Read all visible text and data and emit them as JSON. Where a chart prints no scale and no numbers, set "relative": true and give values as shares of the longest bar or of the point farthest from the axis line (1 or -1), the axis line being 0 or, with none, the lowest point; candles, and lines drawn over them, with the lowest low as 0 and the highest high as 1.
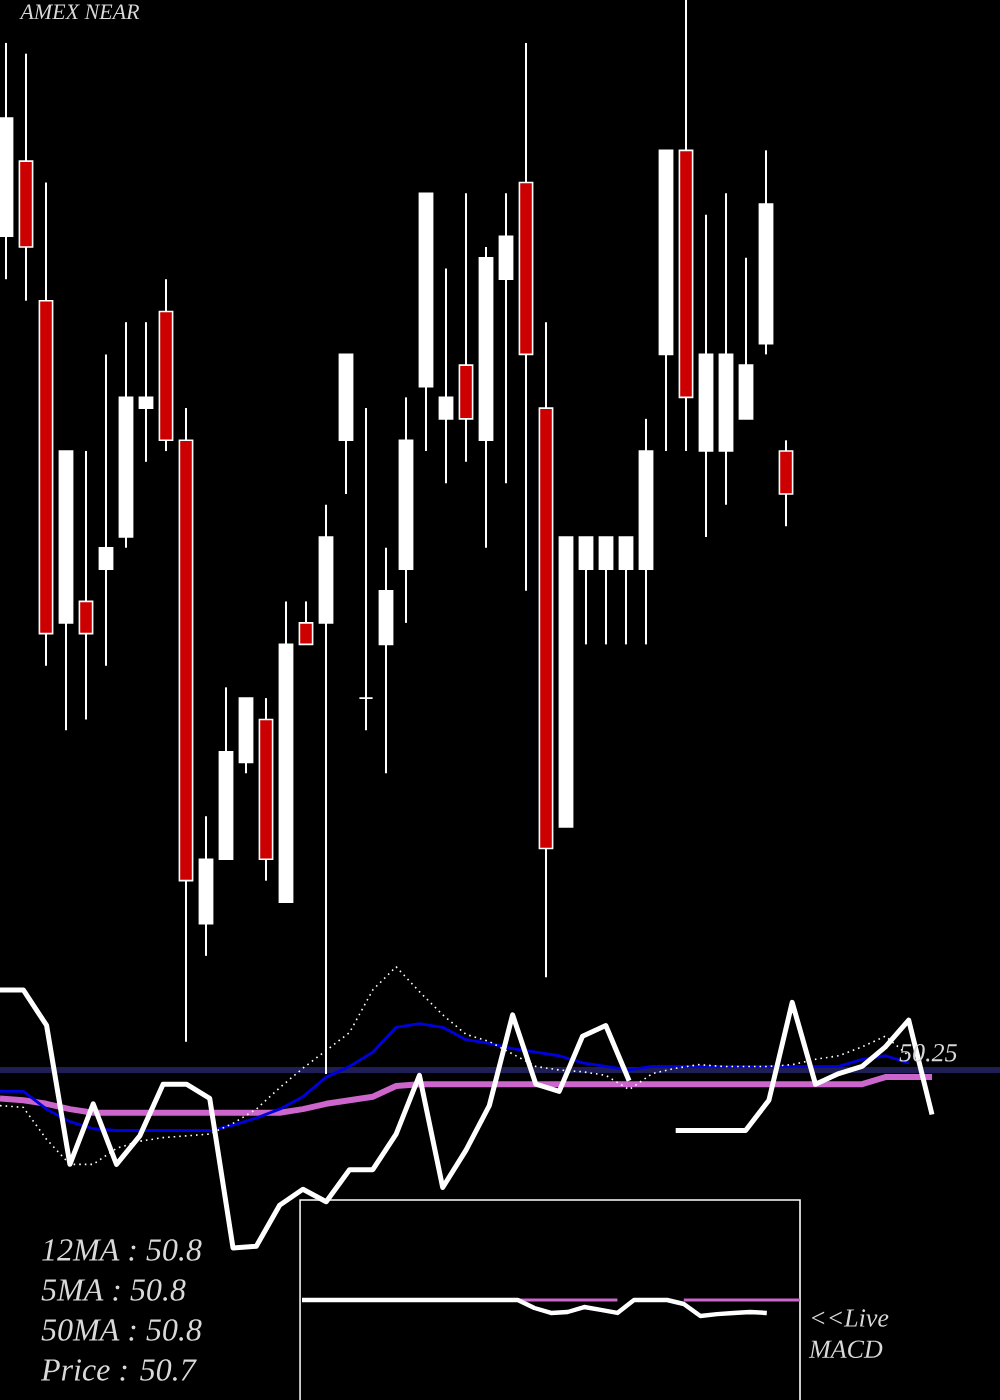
{
  "chart_data": [
    {
      "type": "candlestick",
      "title": "AMEX NEAR",
      "relative": true,
      "categories": [
        null,
        null,
        null,
        null,
        null,
        null,
        null,
        null,
        null,
        null,
        null,
        null,
        null,
        null,
        null,
        null,
        null,
        null,
        null,
        null,
        null,
        null,
        null,
        null,
        null,
        null,
        null,
        null,
        null,
        null,
        null,
        null,
        null,
        null,
        null,
        null,
        null,
        null,
        null,
        null
      ],
      "ohlc": [
        [
          0.78,
          0.96,
          0.74,
          0.89
        ],
        [
          0.85,
          0.95,
          0.72,
          0.77
        ],
        [
          0.72,
          0.83,
          0.38,
          0.41
        ],
        [
          0.42,
          0.58,
          0.32,
          0.58
        ],
        [
          0.44,
          0.58,
          0.33,
          0.41
        ],
        [
          0.47,
          0.67,
          0.38,
          0.49
        ],
        [
          0.5,
          0.7,
          0.49,
          0.63
        ],
        [
          0.62,
          0.7,
          0.57,
          0.63
        ],
        [
          0.71,
          0.74,
          0.58,
          0.59
        ],
        [
          0.59,
          0.62,
          0.03,
          0.18
        ],
        [
          0.14,
          0.24,
          0.11,
          0.2
        ],
        [
          0.2,
          0.36,
          0.2,
          0.3
        ],
        [
          0.29,
          0.35,
          0.28,
          0.35
        ],
        [
          0.33,
          0.35,
          0.18,
          0.2
        ],
        [
          0.16,
          0.44,
          0.16,
          0.4
        ],
        [
          0.42,
          0.44,
          0.4,
          0.4
        ],
        [
          0.42,
          0.53,
          0,
          0.5
        ],
        [
          0.59,
          0.67,
          0.54,
          0.67
        ],
        [
          0.35,
          0.62,
          0.32,
          0.35
        ],
        [
          0.4,
          0.49,
          0.28,
          0.45
        ],
        [
          0.47,
          0.63,
          0.42,
          0.59
        ],
        [
          0.64,
          0.82,
          0.58,
          0.82
        ],
        [
          0.61,
          0.75,
          0.55,
          0.63
        ],
        [
          0.66,
          0.82,
          0.57,
          0.61
        ],
        [
          0.59,
          0.77,
          0.49,
          0.76
        ],
        [
          0.74,
          0.82,
          0.55,
          0.78
        ],
        [
          0.83,
          0.96,
          0.45,
          0.67
        ],
        [
          0.62,
          0.7,
          0.09,
          0.21
        ],
        [
          0.23,
          0.5,
          0.23,
          0.5
        ],
        [
          0.47,
          0.5,
          0.4,
          0.5
        ],
        [
          0.47,
          0.5,
          0.4,
          0.5
        ],
        [
          0.47,
          0.5,
          0.4,
          0.5
        ],
        [
          0.47,
          0.61,
          0.4,
          0.58
        ],
        [
          0.67,
          0.86,
          0.58,
          0.86
        ],
        [
          0.86,
          1,
          0.58,
          0.63
        ],
        [
          0.58,
          0.8,
          0.5,
          0.67
        ],
        [
          0.58,
          0.82,
          0.53,
          0.67
        ],
        [
          0.61,
          0.76,
          0.61,
          0.66
        ],
        [
          0.68,
          0.86,
          0.67,
          0.81
        ],
        [
          0.58,
          0.59,
          0.51,
          0.54
        ]
      ],
      "colors": [
        "#ffffff",
        "#cc0000",
        "#cc0000",
        "#ffffff",
        "#cc0000",
        "#ffffff",
        "#ffffff",
        "#ffffff",
        "#cc0000",
        "#cc0000",
        "#ffffff",
        "#ffffff",
        "#ffffff",
        "#cc0000",
        "#ffffff",
        "#cc0000",
        "#ffffff",
        "#ffffff",
        "#ffffff",
        "#ffffff",
        "#ffffff",
        "#ffffff",
        "#ffffff",
        "#cc0000",
        "#ffffff",
        "#ffffff",
        "#cc0000",
        "#cc0000",
        "#ffffff",
        "#ffffff",
        "#ffffff",
        "#ffffff",
        "#ffffff",
        "#ffffff",
        "#cc0000",
        "#ffffff",
        "#ffffff",
        "#ffffff",
        "#ffffff",
        "#cc0000"
      ]
    },
    {
      "type": "line",
      "relative": true,
      "categories": [
        null,
        null,
        null,
        null,
        null,
        null,
        null,
        null,
        null,
        null,
        null,
        null,
        null,
        null,
        null,
        null,
        null,
        null,
        null,
        null,
        null,
        null,
        null,
        null,
        null,
        null,
        null,
        null,
        null,
        null,
        null,
        null,
        null,
        null,
        null,
        null,
        null,
        null,
        null,
        null,
        null
      ],
      "series": [
        {
          "color": "#cc66cc",
          "values": [
            -0.16,
            -0.17,
            -0.19,
            -0.22,
            -0.24,
            -0.24,
            -0.24,
            -0.24,
            -0.24,
            -0.24,
            -0.24,
            -0.24,
            -0.24,
            -0.22,
            -0.19,
            -0.17,
            -0.15,
            -0.09,
            -0.08,
            -0.08,
            -0.08,
            -0.08,
            -0.08,
            -0.08,
            -0.08,
            -0.08,
            -0.08,
            -0.08,
            -0.08,
            -0.08,
            -0.08,
            -0.08,
            -0.08,
            -0.08,
            -0.08,
            -0.08,
            -0.08,
            -0.08,
            -0.04,
            -0.04,
            -0.04
          ]
        },
        {
          "color": "#0000dd",
          "values": [
            -0.12,
            -0.12,
            -0.22,
            -0.29,
            -0.33,
            -0.34,
            -0.34,
            -0.34,
            -0.34,
            -0.34,
            -0.31,
            -0.27,
            -0.22,
            -0.15,
            -0.04,
            0.02,
            0.1,
            0.24,
            0.26,
            0.24,
            0.17,
            0.15,
            0.12,
            0.1,
            0.08,
            0.04,
            0.02,
            0,
            0.02,
            0.02,
            0.02,
            0.02,
            0.02,
            0.02,
            0.02,
            0.02,
            0.02,
            0.06,
            0.08,
            0.04,
            null
          ]
        },
        {
          "color": "#ffffff",
          "line_style": "dotted",
          "values": [
            -0.2,
            -0.21,
            -0.39,
            -0.53,
            -0.53,
            -0.44,
            -0.4,
            -0.38,
            -0.37,
            -0.36,
            -0.3,
            -0.22,
            -0.1,
            0.01,
            0.11,
            0.21,
            0.45,
            0.58,
            0.44,
            0.31,
            0.2,
            0.16,
            0.09,
            0.02,
            0,
            -0.01,
            -0.03,
            -0.11,
            -0.02,
            0.01,
            0.03,
            0.02,
            0.02,
            0.02,
            0.03,
            0.06,
            0.08,
            0.13,
            0.19,
            0.08,
            null
          ]
        },
        {
          "color": "#ffffff",
          "values": [
            0.45,
            0.45,
            0.25,
            -0.53,
            -0.19,
            -0.53,
            -0.37,
            -0.08,
            -0.08,
            -0.16,
            -1,
            -0.99,
            -0.76,
            -0.67,
            -0.74,
            -0.56,
            -0.56,
            -0.36,
            -0.03,
            -0.66,
            -0.45,
            -0.2,
            0.31,
            -0.08,
            -0.12,
            0.19,
            0.25,
            -0.06,
            null,
            -0.34,
            -0.34,
            -0.34,
            -0.34,
            -0.17,
            0.38,
            -0.08,
            -0.02,
            0.02,
            0.13,
            0.28,
            -0.25
          ]
        }
      ],
      "annotations": [
        "50.25"
      ]
    },
    {
      "type": "line",
      "relative": true,
      "title": "<<Live MACD",
      "categories": [
        null,
        null,
        null,
        null,
        null,
        null,
        null,
        null,
        null,
        null,
        null,
        null,
        null,
        null,
        null,
        null,
        null,
        null,
        null,
        null,
        null,
        null,
        null,
        null,
        null,
        null,
        null,
        null,
        null,
        null,
        null
      ],
      "series": [
        {
          "color": "#cc66cc",
          "values": [
            null,
            null,
            null,
            null,
            null,
            null,
            null,
            null,
            null,
            null,
            null,
            null,
            null,
            1,
            1,
            1,
            1,
            1,
            1,
            1,
            null,
            null,
            null,
            1,
            1,
            1,
            1,
            1,
            1,
            1,
            1
          ]
        },
        {
          "color": "#ffffff",
          "values": [
            1,
            1,
            1,
            1,
            1,
            1,
            1,
            1,
            1,
            1,
            1,
            1,
            1,
            1,
            0.5,
            0.19,
            0.25,
            0.56,
            0.38,
            0.19,
            1,
            1,
            1,
            0.75,
            0,
            0.12,
            0.19,
            0.25,
            0.19,
            null,
            null
          ]
        }
      ]
    },
    {
      "type": "other",
      "annotations": [
        "12MA : 50.8",
        "5MA : 50.8",
        "50MA : 50.8",
        "Price : 50.7"
      ]
    }
  ]
}
